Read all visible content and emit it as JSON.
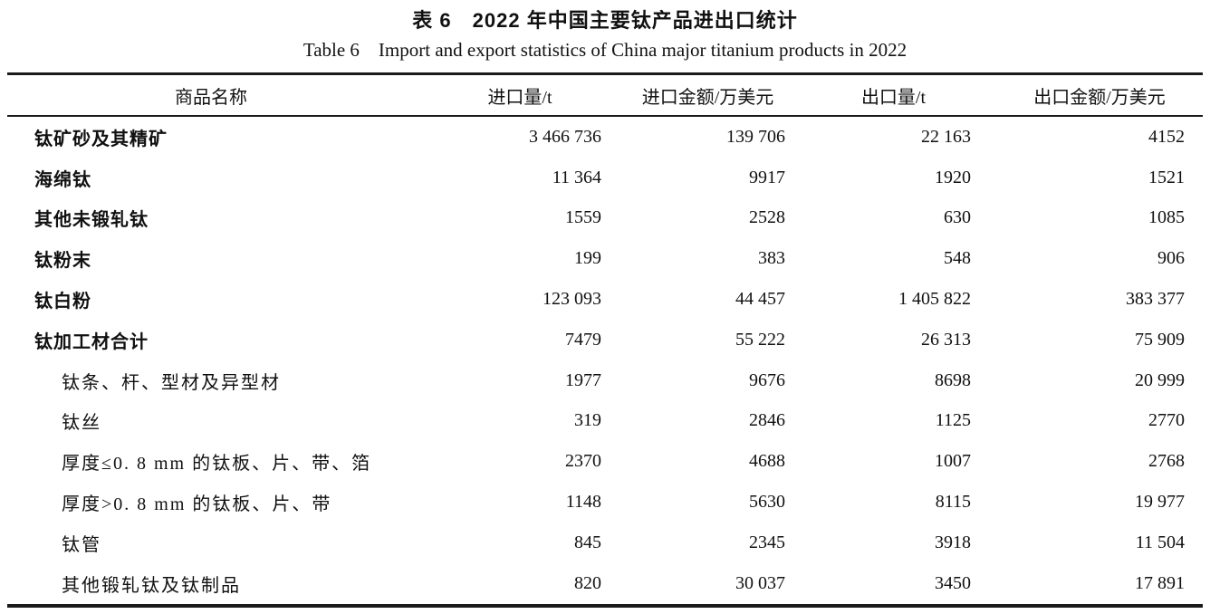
{
  "page": {
    "title_zh": "表 6　2022 年中国主要钛产品进出口统计",
    "title_en": "Table 6　Import and export statistics of China major titanium products in 2022"
  },
  "table": {
    "headers": [
      "商品名称",
      "进口量/t",
      "进口金额/万美元",
      "出口量/t",
      "出口金额/万美元"
    ],
    "rows": [
      {
        "name": "钛矿砂及其精矿",
        "category": true,
        "values": [
          "3 466 736",
          "139 706",
          "22 163",
          "4152"
        ]
      },
      {
        "name": "海绵钛",
        "category": true,
        "values": [
          "11 364",
          "9917",
          "1920",
          "1521"
        ]
      },
      {
        "name": "其他未锻轧钛",
        "category": true,
        "values": [
          "1559",
          "2528",
          "630",
          "1085"
        ]
      },
      {
        "name": "钛粉末",
        "category": true,
        "values": [
          "199",
          "383",
          "548",
          "906"
        ]
      },
      {
        "name": "钛白粉",
        "category": true,
        "values": [
          "123 093",
          "44 457",
          "1 405 822",
          "383 377"
        ]
      },
      {
        "name": "钛加工材合计",
        "category": true,
        "values": [
          "7479",
          "55 222",
          "26 313",
          "75 909"
        ]
      },
      {
        "name": "钛条、杆、型材及异型材",
        "category": false,
        "values": [
          "1977",
          "9676",
          "8698",
          "20 999"
        ]
      },
      {
        "name": "钛丝",
        "category": false,
        "values": [
          "319",
          "2846",
          "1125",
          "2770"
        ]
      },
      {
        "name": "厚度≤0. 8 mm 的钛板、片、带、箔",
        "category": false,
        "values": [
          "2370",
          "4688",
          "1007",
          "2768"
        ]
      },
      {
        "name": "厚度>0. 8 mm 的钛板、片、带",
        "category": false,
        "values": [
          "1148",
          "5630",
          "8115",
          "19 977"
        ]
      },
      {
        "name": "钛管",
        "category": false,
        "values": [
          "845",
          "2345",
          "3918",
          "11 504"
        ]
      },
      {
        "name": "其他锻轧钛及钛制品",
        "category": false,
        "values": [
          "820",
          "30 037",
          "3450",
          "17 891"
        ]
      }
    ]
  },
  "colors": {
    "text": "#111111",
    "rule": "#1a1a1a",
    "background": "#ffffff"
  }
}
